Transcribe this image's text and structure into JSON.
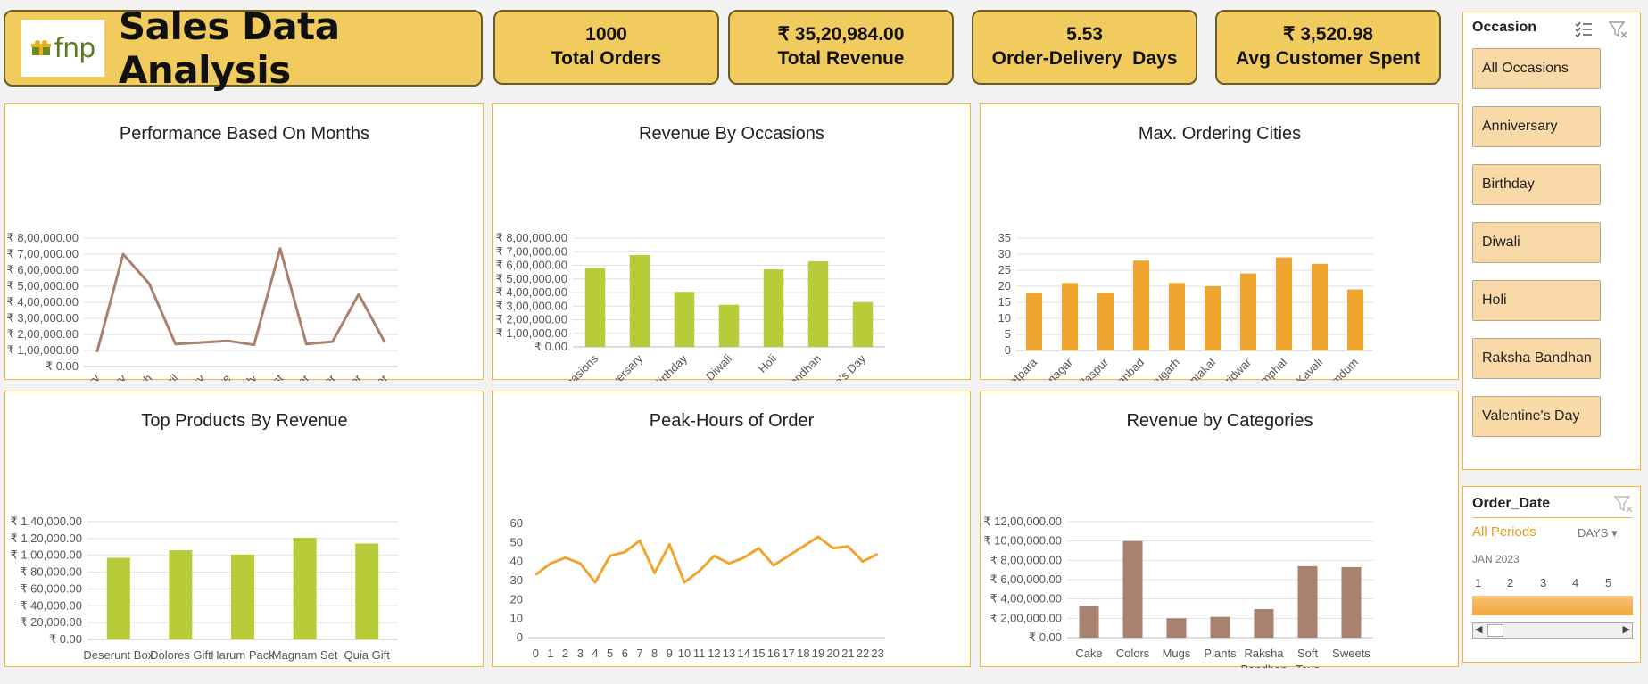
{
  "header": {
    "logo_text": "fnp",
    "title": "Sales Data Analysis"
  },
  "kpis": [
    {
      "value": "1000",
      "label": "Total Orders"
    },
    {
      "value": "₹ 35,20,984.00",
      "label": "Total Revenue"
    },
    {
      "value": "5.53",
      "label": "Order-Delivery  Days"
    },
    {
      "value": "₹ 3,520.98",
      "label": "Avg Customer Spent"
    }
  ],
  "colors": {
    "card": "#f2cb5e",
    "green_bar": "#b8cc3a",
    "orange": "#f0a530",
    "brown": "#a8826f",
    "slicer_item": "#f9d9a8"
  },
  "occasion_slicer": {
    "title": "Occasion",
    "icons": [
      "multi-select-icon",
      "clear-filter-icon"
    ],
    "items": [
      "All Occasions",
      "Anniversary",
      "Birthday",
      "Diwali",
      "Holi",
      "Raksha Bandhan",
      "Valentine's Day"
    ]
  },
  "timeline": {
    "title": "Order_Date",
    "periods_label": "All Periods",
    "level": "DAYS",
    "month": "JAN 2023",
    "days": [
      "1",
      "2",
      "3",
      "4",
      "5"
    ]
  },
  "chart_data": [
    {
      "id": "months",
      "type": "line",
      "title": "Performance Based On Months",
      "categories": [
        "January",
        "February",
        "March",
        "April",
        "May",
        "June",
        "July",
        "August",
        "September",
        "October",
        "November",
        "December"
      ],
      "values": [
        90000,
        700000,
        515000,
        140000,
        150000,
        160000,
        135000,
        735000,
        140000,
        155000,
        450000,
        150000
      ],
      "yticks": [
        "₹ 8,00,000.00",
        "₹ 7,00,000.00",
        "₹ 6,00,000.00",
        "₹ 5,00,000.00",
        "₹ 4,00,000.00",
        "₹ 3,00,000.00",
        "₹ 2,00,000.00",
        "₹ 1,00,000.00",
        "₹ 0.00"
      ],
      "ylim": [
        0,
        800000
      ],
      "color": "#a8826f",
      "grid": true
    },
    {
      "id": "occasions",
      "type": "bar",
      "title": "Revenue By Occasions",
      "categories": [
        "All Occasions",
        "Anniversary",
        "Birthday",
        "Diwali",
        "Holi",
        "Raksha Bandhan",
        "Valentine's Day"
      ],
      "values": [
        580000,
        675000,
        405000,
        310000,
        570000,
        630000,
        330000
      ],
      "yticks": [
        "₹ 8,00,000.00",
        "₹ 7,00,000.00",
        "₹ 6,00,000.00",
        "₹ 5,00,000.00",
        "₹ 4,00,000.00",
        "₹ 3,00,000.00",
        "₹ 2,00,000.00",
        "₹ 1,00,000.00",
        "₹ 0.00"
      ],
      "ylim": [
        0,
        800000
      ],
      "color": "#b8cc3a",
      "grid": true
    },
    {
      "id": "cities",
      "type": "bar",
      "title": "Max. Ordering Cities",
      "categories": [
        "Bhatpara",
        "Bidhannagar",
        "Bilaspur",
        "Dhanbad",
        "Dibrugarh",
        "Guntakal",
        "Haridwar",
        "Imphal",
        "Kavali",
        "North Dumdum"
      ],
      "values": [
        18,
        21,
        18,
        28,
        21,
        20,
        24,
        29,
        27,
        19
      ],
      "yticks": [
        "35",
        "30",
        "25",
        "20",
        "15",
        "10",
        "5",
        "0"
      ],
      "ylim": [
        0,
        35
      ],
      "color": "#f0a530",
      "grid": true
    },
    {
      "id": "products",
      "type": "bar",
      "title": "Top Products By Revenue",
      "categories": [
        "Deserunt Box",
        "Dolores Gift",
        "Harum Pack",
        "Magnam Set",
        "Quia Gift"
      ],
      "values": [
        97000,
        106000,
        101000,
        121000,
        114000
      ],
      "yticks": [
        "₹ 1,40,000.00",
        "₹ 1,20,000.00",
        "₹ 1,00,000.00",
        "₹ 80,000.00",
        "₹ 60,000.00",
        "₹ 40,000.00",
        "₹ 20,000.00",
        "₹ 0.00"
      ],
      "ylim": [
        0,
        140000
      ],
      "color": "#b8cc3a",
      "grid": true
    },
    {
      "id": "hours",
      "type": "line",
      "title": "Peak-Hours of Order",
      "categories": [
        "0",
        "1",
        "2",
        "3",
        "4",
        "5",
        "6",
        "7",
        "8",
        "9",
        "10",
        "11",
        "12",
        "13",
        "14",
        "15",
        "16",
        "17",
        "18",
        "19",
        "20",
        "21",
        "22",
        "23"
      ],
      "values": [
        33,
        39,
        42,
        39,
        29,
        43,
        45,
        51,
        34,
        49,
        29,
        35,
        43,
        39,
        42,
        47,
        38,
        43,
        48,
        53,
        47,
        48,
        40,
        44
      ],
      "yticks": [
        "60",
        "50",
        "40",
        "30",
        "20",
        "10",
        "0"
      ],
      "ylim": [
        0,
        60
      ],
      "color": "#f0a530",
      "grid": false
    },
    {
      "id": "categories",
      "type": "bar",
      "title": "Revenue by Categories",
      "categories": [
        "Cake",
        "Colors",
        "Mugs",
        "Plants",
        "Raksha Bandhan",
        "Soft Toys",
        "Sweets"
      ],
      "values": [
        330000,
        1000000,
        200000,
        215000,
        295000,
        740000,
        730000
      ],
      "yticks": [
        "₹ 12,00,000.00",
        "₹ 10,00,000.00",
        "₹ 8,00,000.00",
        "₹ 6,00,000.00",
        "₹ 4,00,000.00",
        "₹ 2,00,000.00",
        "₹ 0.00"
      ],
      "ylim": [
        0,
        1200000
      ],
      "color": "#a8826f",
      "grid": true
    }
  ]
}
